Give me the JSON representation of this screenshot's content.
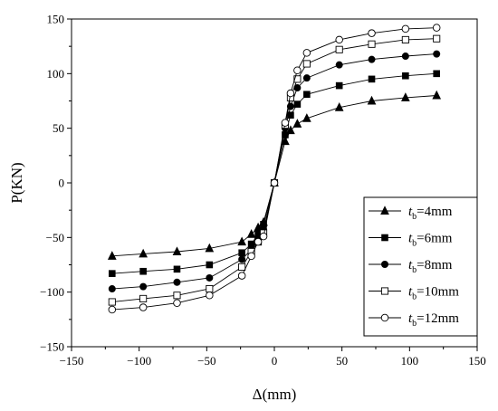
{
  "chart_data": {
    "type": "line",
    "xlabel": "Δ(mm)",
    "ylabel": "P(KN)",
    "xlim": [
      -150,
      150
    ],
    "ylim": [
      -150,
      150
    ],
    "xticks": [
      -150,
      -100,
      -50,
      0,
      50,
      100,
      150
    ],
    "yticks": [
      -150,
      -100,
      -50,
      0,
      50,
      100,
      150
    ],
    "legend_position": "bottom-right",
    "series": [
      {
        "name_main": "t",
        "name_sub": "b",
        "name_rest": "=4mm",
        "marker": "triangle-filled",
        "x": [
          -120,
          -97,
          -72,
          -48,
          -24,
          -17,
          -12,
          -8,
          0,
          8,
          12,
          17,
          24,
          48,
          72,
          97,
          120
        ],
        "y": [
          -67,
          -65,
          -63,
          -60,
          -54,
          -47,
          -41,
          -36,
          0,
          38,
          48,
          54,
          59,
          69,
          75,
          78,
          80
        ]
      },
      {
        "name_main": "t",
        "name_sub": "b",
        "name_rest": "=6mm",
        "marker": "square-filled",
        "x": [
          -120,
          -97,
          -72,
          -48,
          -24,
          -17,
          -12,
          -8,
          0,
          8,
          12,
          17,
          24,
          48,
          72,
          97,
          120
        ],
        "y": [
          -83,
          -81,
          -79,
          -75,
          -64,
          -56,
          -47,
          -38,
          0,
          44,
          62,
          72,
          81,
          89,
          95,
          98,
          100
        ]
      },
      {
        "name_main": "t",
        "name_sub": "b",
        "name_rest": "=8mm",
        "marker": "circle-filled",
        "x": [
          -120,
          -97,
          -72,
          -48,
          -24,
          -17,
          -12,
          -8,
          0,
          8,
          12,
          17,
          24,
          48,
          72,
          97,
          120
        ],
        "y": [
          -97,
          -95,
          -91,
          -87,
          -70,
          -61,
          -51,
          -43,
          0,
          50,
          70,
          87,
          96,
          108,
          113,
          116,
          118
        ]
      },
      {
        "name_main": "t",
        "name_sub": "b",
        "name_rest": "=10mm",
        "marker": "square-open",
        "x": [
          -120,
          -97,
          -72,
          -48,
          -24,
          -17,
          -12,
          -8,
          0,
          8,
          12,
          17,
          24,
          48,
          72,
          97,
          120
        ],
        "y": [
          -109,
          -106,
          -103,
          -97,
          -77,
          -63,
          -54,
          -46,
          0,
          53,
          78,
          95,
          109,
          122,
          127,
          131,
          132
        ]
      },
      {
        "name_main": "t",
        "name_sub": "b",
        "name_rest": "=12mm",
        "marker": "circle-open",
        "x": [
          -120,
          -97,
          -72,
          -48,
          -24,
          -17,
          -12,
          -8,
          0,
          8,
          12,
          17,
          24,
          48,
          72,
          97,
          120
        ],
        "y": [
          -116,
          -114,
          -110,
          -103,
          -85,
          -67,
          -54,
          -49,
          0,
          55,
          82,
          103,
          119,
          131,
          137,
          141,
          142
        ]
      }
    ]
  }
}
